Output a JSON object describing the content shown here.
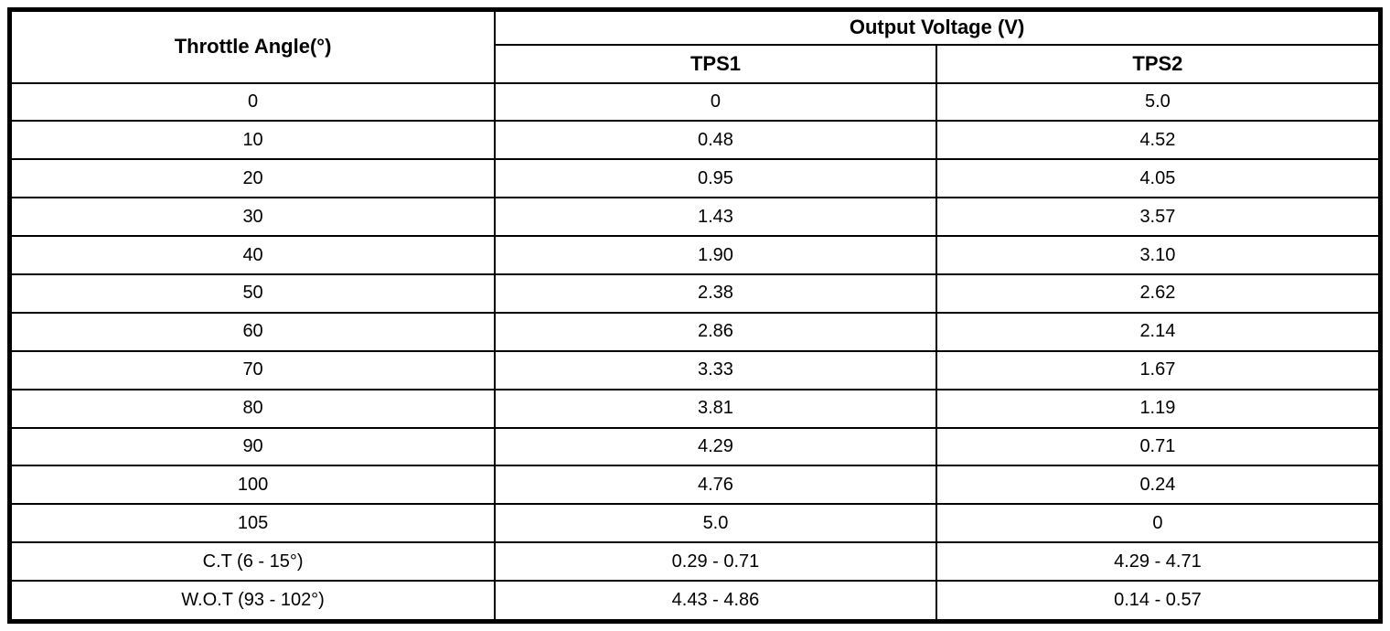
{
  "colors": {
    "text": "#000000",
    "background": "#ffffff",
    "border": "#000000"
  },
  "table": {
    "angle_header": "Throttle Angle(°)",
    "voltage_header": "Output Voltage (V)",
    "sub_headers": [
      "TPS1",
      "TPS2"
    ],
    "rows": [
      [
        "0",
        "0",
        "5.0"
      ],
      [
        "10",
        "0.48",
        "4.52"
      ],
      [
        "20",
        "0.95",
        "4.05"
      ],
      [
        "30",
        "1.43",
        "3.57"
      ],
      [
        "40",
        "1.90",
        "3.10"
      ],
      [
        "50",
        "2.38",
        "2.62"
      ],
      [
        "60",
        "2.86",
        "2.14"
      ],
      [
        "70",
        "3.33",
        "1.67"
      ],
      [
        "80",
        "3.81",
        "1.19"
      ],
      [
        "90",
        "4.29",
        "0.71"
      ],
      [
        "100",
        "4.76",
        "0.24"
      ],
      [
        "105",
        "5.0",
        "0"
      ],
      [
        "C.T (6 - 15°)",
        "0.29 - 0.71",
        "4.29 - 4.71"
      ],
      [
        "W.O.T (93 - 102°)",
        "4.43 - 4.86",
        "0.14 - 0.57"
      ]
    ]
  },
  "chart_data": {
    "type": "table",
    "title": "Output Voltage (V)",
    "columns": [
      "Throttle Angle(°)",
      "TPS1",
      "TPS2"
    ],
    "x": [
      0,
      10,
      20,
      30,
      40,
      50,
      60,
      70,
      80,
      90,
      100,
      105
    ],
    "series": [
      {
        "name": "TPS1",
        "values": [
          0,
          0.48,
          0.95,
          1.43,
          1.9,
          2.38,
          2.86,
          3.33,
          3.81,
          4.29,
          4.76,
          5.0
        ]
      },
      {
        "name": "TPS2",
        "values": [
          5.0,
          4.52,
          4.05,
          3.57,
          3.1,
          2.62,
          2.14,
          1.67,
          1.19,
          0.71,
          0.24,
          0
        ]
      }
    ],
    "special_rows": [
      {
        "label": "C.T (6 - 15°)",
        "TPS1": "0.29 - 0.71",
        "TPS2": "4.29 - 4.71"
      },
      {
        "label": "W.O.T (93 - 102°)",
        "TPS1": "4.43 - 4.86",
        "TPS2": "0.14 - 0.57"
      }
    ]
  }
}
